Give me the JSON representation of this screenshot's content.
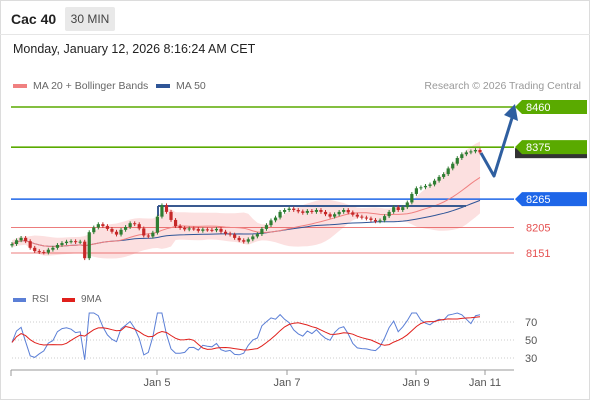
{
  "header": {
    "instrument": "Cac 40",
    "timeframe": "30 MIN",
    "timestamp": "Monday, January 12, 2026 8:16:24 AM CET"
  },
  "legend": {
    "items": [
      {
        "label": "MA 20 + Bollinger Bands",
        "color": "#f08080"
      },
      {
        "label": "MA 50",
        "color": "#2f5597"
      }
    ],
    "copyright": "Research © 2026 Trading Central"
  },
  "rsi_legend": {
    "items": [
      {
        "label": "RSI",
        "color": "#5b7fd6"
      },
      {
        "label": "9MA",
        "color": "#e0201c"
      }
    ]
  },
  "colors": {
    "resistance": "#5aaa00",
    "pivot": "#1e66e8",
    "support": "#e55050",
    "candle_up": "#2e7d32",
    "candle_down": "#c62828",
    "ma20": "#f08080",
    "ma50": "#2f5597",
    "forecast": "#2f5fa0"
  },
  "chart_data": [
    {
      "type": "candlestick",
      "x_ticks": [
        "Jan 5",
        "Jan 7",
        "Jan 9",
        "Jan 11"
      ],
      "levels": [
        {
          "value": 8460,
          "kind": "resistance"
        },
        {
          "value": 8375,
          "kind": "resistance"
        },
        {
          "value": 8265,
          "kind": "pivot"
        },
        {
          "value": 8205,
          "kind": "support"
        },
        {
          "value": 8151,
          "kind": "support"
        }
      ],
      "closes": [
        8170,
        8178,
        8183,
        8176,
        8162,
        8155,
        8153,
        8152,
        8158,
        8162,
        8168,
        8172,
        8175,
        8176,
        8174,
        8175,
        8140,
        8195,
        8205,
        8212,
        8208,
        8202,
        8196,
        8190,
        8200,
        8206,
        8214,
        8212,
        8203,
        8188,
        8186,
        8194,
        8228,
        8252,
        8238,
        8221,
        8208,
        8204,
        8201,
        8203,
        8202,
        8198,
        8201,
        8200,
        8199,
        8202,
        8196,
        8192,
        8190,
        8183,
        8178,
        8175,
        8180,
        8186,
        8191,
        8202,
        8210,
        8220,
        8226,
        8238,
        8242,
        8245,
        8242,
        8239,
        8236,
        8240,
        8238,
        8242,
        8238,
        8233,
        8228,
        8233,
        8238,
        8242,
        8237,
        8232,
        8228,
        8226,
        8224,
        8221,
        8218,
        8220,
        8229,
        8238,
        8248,
        8242,
        8248,
        8258,
        8276,
        8288,
        8290,
        8293,
        8296,
        8304,
        8312,
        8318,
        8330,
        8340,
        8352,
        8360,
        8364,
        8366,
        8369,
        8364
      ],
      "ma20_approx": [
        8180,
        8330
      ],
      "rsi": {
        "scale_ticks": [
          70,
          50,
          30
        ]
      }
    }
  ]
}
